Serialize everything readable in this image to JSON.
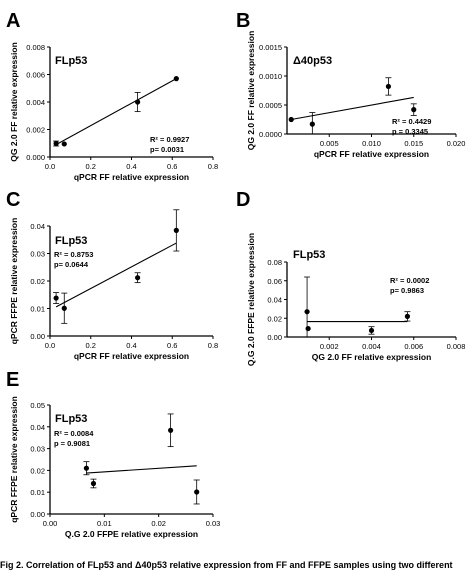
{
  "caption": "Fig 2. Correlation of FLp53 and Δ40p53 relative expression from FF and FFPE samples using two different",
  "chart_data": [
    {
      "panel": "A",
      "type": "scatter",
      "title": "FLp53",
      "xlabel": "qPCR FF relative expression",
      "ylabel": "QG 2.0 FF relative expression",
      "xlim": [
        0,
        0.8
      ],
      "ylim": [
        0,
        0.008
      ],
      "xticks": [
        "0.0",
        "0.2",
        "0.4",
        "0.6",
        "0.8"
      ],
      "yticks": [
        "0.000",
        "0.002",
        "0.004",
        "0.006",
        "0.008"
      ],
      "points": [
        {
          "x": 0.03,
          "y": 0.00098,
          "err": 0.00018
        },
        {
          "x": 0.07,
          "y": 0.00095,
          "err": 0.0
        },
        {
          "x": 0.43,
          "y": 0.004,
          "err": 0.0007
        },
        {
          "x": 0.62,
          "y": 0.0057,
          "err": 0.0
        }
      ],
      "fit": {
        "x1": 0.03,
        "y1": 0.0009,
        "x2": 0.62,
        "y2": 0.0057
      },
      "stats": [
        "R² = 0.9927",
        "p= 0.0031"
      ]
    },
    {
      "panel": "B",
      "type": "scatter",
      "title": "Δ40p53",
      "xlabel": "qPCR FF relative expression",
      "ylabel": "QG 2.0 FF relative expression",
      "xlim": [
        0,
        0.02
      ],
      "ylim": [
        0,
        0.0015
      ],
      "xticks": [
        "0.005",
        "0.010",
        "0.015",
        "0.020"
      ],
      "yticks": [
        "0.0000",
        "0.0005",
        "0.0010",
        "0.0015"
      ],
      "points": [
        {
          "x": 0.0005,
          "y": 0.00025,
          "err": 0.0
        },
        {
          "x": 0.003,
          "y": 0.00017,
          "err": 0.0002
        },
        {
          "x": 0.012,
          "y": 0.00082,
          "err": 0.00015
        },
        {
          "x": 0.015,
          "y": 0.00042,
          "err": 0.0001
        }
      ],
      "fit": {
        "x1": 0.0005,
        "y1": 0.00025,
        "x2": 0.015,
        "y2": 0.00063
      },
      "stats": [
        "R² = 0.4429",
        "p = 0.3345"
      ]
    },
    {
      "panel": "C",
      "type": "scatter",
      "title": "FLp53",
      "xlabel": "qPCR FF relative expression",
      "ylabel": "qPCR FFPE relative expression",
      "xlim": [
        0,
        0.8
      ],
      "ylim": [
        0,
        0.04
      ],
      "xticks": [
        "0.0",
        "0.2",
        "0.4",
        "0.6",
        "0.8"
      ],
      "yticks": [
        "0.00",
        "0.01",
        "0.02",
        "0.03",
        "0.04"
      ],
      "points": [
        {
          "x": 0.03,
          "y": 0.0138,
          "err": 0.002
        },
        {
          "x": 0.07,
          "y": 0.0101,
          "err": 0.0055
        },
        {
          "x": 0.43,
          "y": 0.0212,
          "err": 0.0018
        },
        {
          "x": 0.62,
          "y": 0.0384,
          "err": 0.0075
        }
      ],
      "fit": {
        "x1": 0.03,
        "y1": 0.0106,
        "x2": 0.62,
        "y2": 0.0338
      },
      "stats": [
        "R² = 0.8753",
        "p= 0.0644"
      ]
    },
    {
      "panel": "D",
      "type": "scatter",
      "title": "FLp53",
      "xlabel": "QG 2.0 FF relative expression",
      "ylabel": "Q.G 2.0 FFPE relative expression",
      "xlim": [
        0,
        0.008
      ],
      "ylim": [
        0,
        0.08
      ],
      "xticks": [
        "0.002",
        "0.004",
        "0.006",
        "0.008"
      ],
      "yticks": [
        "0.00",
        "0.02",
        "0.04",
        "0.06",
        "0.08"
      ],
      "points": [
        {
          "x": 0.00095,
          "y": 0.027,
          "err": 0.037
        },
        {
          "x": 0.001,
          "y": 0.009,
          "err": 0.0
        },
        {
          "x": 0.004,
          "y": 0.007,
          "err": 0.004
        },
        {
          "x": 0.0057,
          "y": 0.022,
          "err": 0.005
        }
      ],
      "fit": {
        "x1": 0.00095,
        "y1": 0.0165,
        "x2": 0.0057,
        "y2": 0.0165
      },
      "stats": [
        "R² = 0.0002",
        "p= 0.9863"
      ]
    },
    {
      "panel": "E",
      "type": "scatter",
      "title": "FLp53",
      "xlabel": "Q.G 2.0 FFPE relative expression",
      "ylabel": "qPCR FFPE relative expression",
      "xlim": [
        0,
        0.03
      ],
      "ylim": [
        0,
        0.05
      ],
      "xticks": [
        "0.00",
        "0.01",
        "0.02",
        "0.03"
      ],
      "yticks": [
        "0.00",
        "0.01",
        "0.02",
        "0.03",
        "0.04",
        "0.05"
      ],
      "points": [
        {
          "x": 0.0067,
          "y": 0.021,
          "err": 0.003
        },
        {
          "x": 0.008,
          "y": 0.014,
          "err": 0.002
        },
        {
          "x": 0.0222,
          "y": 0.0384,
          "err": 0.0075
        },
        {
          "x": 0.027,
          "y": 0.0101,
          "err": 0.0055
        }
      ],
      "fit": {
        "x1": 0.0067,
        "y1": 0.0188,
        "x2": 0.027,
        "y2": 0.0221
      },
      "stats": [
        "R² = 0.0084",
        "p = 0.9081"
      ]
    }
  ]
}
